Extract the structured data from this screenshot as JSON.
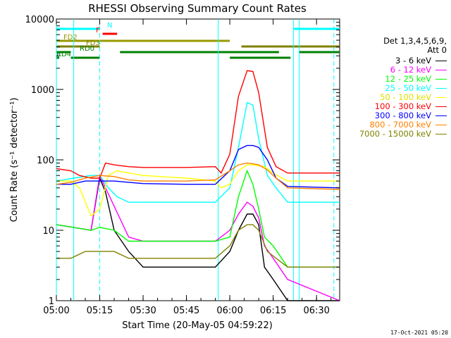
{
  "chart_data": {
    "type": "line",
    "title": "RHESSI Observing Summary Count Rates",
    "xlabel": "Start Time (20-May-05 04:59:22)",
    "ylabel": "Count Rate (s⁻¹ detector⁻¹)",
    "y_scale": "log",
    "xlim": [
      "05:00",
      "06:38"
    ],
    "ylim": [
      1,
      10000
    ],
    "x_ticks": [
      "05:00",
      "05:15",
      "05:30",
      "05:45",
      "06:00",
      "06:15",
      "06:30"
    ],
    "y_ticks": [
      "1",
      "10",
      "100",
      "1000",
      "10000"
    ],
    "legend_header": [
      "Det 1,3,4,5,6,9,",
      "Att 0"
    ],
    "legend_position": "right",
    "timestamp": "17-Oct-2021 05:20",
    "series": [
      {
        "name": "3 - 6 keV",
        "color": "#000000",
        "points": [
          [
            "05:00",
            12
          ],
          [
            "05:12",
            10
          ],
          [
            "05:15",
            55
          ],
          [
            "05:17",
            35
          ],
          [
            "05:20",
            10
          ],
          [
            "05:25",
            5
          ],
          [
            "05:30",
            3
          ],
          [
            "05:45",
            3
          ],
          [
            "05:55",
            3
          ],
          [
            "06:00",
            5
          ],
          [
            "06:03",
            10
          ],
          [
            "06:06",
            17
          ],
          [
            "06:08",
            17
          ],
          [
            "06:10",
            12
          ],
          [
            "06:12",
            3
          ],
          [
            "06:15",
            2
          ],
          [
            "06:20",
            1
          ],
          [
            "06:38",
            1
          ]
        ]
      },
      {
        "name": "6 - 12 keV",
        "color": "#ff00ff",
        "points": [
          [
            "05:00",
            12
          ],
          [
            "05:12",
            10
          ],
          [
            "05:15",
            60
          ],
          [
            "05:17",
            40
          ],
          [
            "05:20",
            22
          ],
          [
            "05:25",
            8
          ],
          [
            "05:30",
            7
          ],
          [
            "05:45",
            7
          ],
          [
            "05:55",
            7
          ],
          [
            "06:00",
            10
          ],
          [
            "06:03",
            17
          ],
          [
            "06:06",
            25
          ],
          [
            "06:08",
            22
          ],
          [
            "06:10",
            15
          ],
          [
            "06:12",
            6
          ],
          [
            "06:15",
            4
          ],
          [
            "06:20",
            2
          ],
          [
            "06:38",
            1
          ]
        ]
      },
      {
        "name": "12 - 25 keV",
        "color": "#00ff00",
        "points": [
          [
            "05:00",
            12
          ],
          [
            "05:12",
            10
          ],
          [
            "05:15",
            11
          ],
          [
            "05:20",
            10
          ],
          [
            "05:25",
            7
          ],
          [
            "05:30",
            7
          ],
          [
            "05:45",
            7
          ],
          [
            "05:55",
            7
          ],
          [
            "06:00",
            8
          ],
          [
            "06:03",
            30
          ],
          [
            "06:06",
            70
          ],
          [
            "06:08",
            45
          ],
          [
            "06:10",
            20
          ],
          [
            "06:12",
            8
          ],
          [
            "06:15",
            6
          ],
          [
            "06:20",
            3
          ],
          [
            "06:38",
            3
          ]
        ]
      },
      {
        "name": "25 - 50 keV",
        "color": "#00ffff",
        "points": [
          [
            "05:00",
            50
          ],
          [
            "05:06",
            55
          ],
          [
            "05:12",
            60
          ],
          [
            "05:15",
            60
          ],
          [
            "05:18",
            40
          ],
          [
            "05:21",
            30
          ],
          [
            "05:25",
            25
          ],
          [
            "05:30",
            25
          ],
          [
            "05:45",
            25
          ],
          [
            "05:55",
            25
          ],
          [
            "06:00",
            40
          ],
          [
            "06:03",
            150
          ],
          [
            "06:06",
            650
          ],
          [
            "06:08",
            600
          ],
          [
            "06:10",
            200
          ],
          [
            "06:13",
            60
          ],
          [
            "06:16",
            40
          ],
          [
            "06:20",
            25
          ],
          [
            "06:38",
            25
          ]
        ]
      },
      {
        "name": "50 - 100 keV",
        "color": "#ffff00",
        "points": [
          [
            "05:00",
            50
          ],
          [
            "05:05",
            50
          ],
          [
            "05:08",
            40
          ],
          [
            "05:12",
            16
          ],
          [
            "05:15",
            20
          ],
          [
            "05:18",
            60
          ],
          [
            "05:21",
            70
          ],
          [
            "05:25",
            65
          ],
          [
            "05:30",
            60
          ],
          [
            "05:45",
            55
          ],
          [
            "05:55",
            50
          ],
          [
            "05:57",
            40
          ],
          [
            "06:00",
            45
          ],
          [
            "06:03",
            70
          ],
          [
            "06:06",
            85
          ],
          [
            "06:08",
            85
          ],
          [
            "06:12",
            80
          ],
          [
            "06:15",
            65
          ],
          [
            "06:18",
            55
          ],
          [
            "06:20",
            50
          ],
          [
            "06:38",
            50
          ]
        ]
      },
      {
        "name": "100 - 300 keV",
        "color": "#ff0000",
        "points": [
          [
            "05:00",
            75
          ],
          [
            "05:05",
            70
          ],
          [
            "05:08",
            60
          ],
          [
            "05:12",
            55
          ],
          [
            "05:15",
            55
          ],
          [
            "05:17",
            90
          ],
          [
            "05:20",
            85
          ],
          [
            "05:25",
            80
          ],
          [
            "05:30",
            78
          ],
          [
            "05:45",
            78
          ],
          [
            "05:55",
            80
          ],
          [
            "05:57",
            65
          ],
          [
            "06:00",
            120
          ],
          [
            "06:03",
            800
          ],
          [
            "06:06",
            1850
          ],
          [
            "06:08",
            1800
          ],
          [
            "06:10",
            900
          ],
          [
            "06:13",
            150
          ],
          [
            "06:16",
            80
          ],
          [
            "06:20",
            65
          ],
          [
            "06:38",
            65
          ]
        ]
      },
      {
        "name": "300 - 800 keV",
        "color": "#0000ff",
        "points": [
          [
            "05:00",
            45
          ],
          [
            "05:05",
            45
          ],
          [
            "05:10",
            50
          ],
          [
            "05:15",
            50
          ],
          [
            "05:20",
            50
          ],
          [
            "05:25",
            48
          ],
          [
            "05:30",
            46
          ],
          [
            "05:45",
            45
          ],
          [
            "05:55",
            45
          ],
          [
            "06:00",
            70
          ],
          [
            "06:03",
            140
          ],
          [
            "06:06",
            160
          ],
          [
            "06:08",
            160
          ],
          [
            "06:10",
            150
          ],
          [
            "06:13",
            100
          ],
          [
            "06:16",
            55
          ],
          [
            "06:20",
            42
          ],
          [
            "06:38",
            40
          ]
        ]
      },
      {
        "name": "800 - 7000 keV",
        "color": "#ff8000",
        "points": [
          [
            "05:00",
            45
          ],
          [
            "05:05",
            48
          ],
          [
            "05:10",
            55
          ],
          [
            "05:15",
            60
          ],
          [
            "05:20",
            58
          ],
          [
            "05:25",
            52
          ],
          [
            "05:30",
            50
          ],
          [
            "05:45",
            50
          ],
          [
            "05:55",
            52
          ],
          [
            "06:00",
            70
          ],
          [
            "06:03",
            85
          ],
          [
            "06:06",
            90
          ],
          [
            "06:08",
            88
          ],
          [
            "06:10",
            85
          ],
          [
            "06:13",
            72
          ],
          [
            "06:16",
            55
          ],
          [
            "06:20",
            40
          ],
          [
            "06:38",
            38
          ]
        ]
      },
      {
        "name": "7000 - 15000 keV",
        "color": "#808000",
        "points": [
          [
            "05:00",
            4
          ],
          [
            "05:05",
            4
          ],
          [
            "05:10",
            5
          ],
          [
            "05:15",
            5
          ],
          [
            "05:20",
            5
          ],
          [
            "05:25",
            4
          ],
          [
            "05:30",
            4
          ],
          [
            "05:45",
            4
          ],
          [
            "05:55",
            4
          ],
          [
            "06:00",
            6
          ],
          [
            "06:03",
            10
          ],
          [
            "06:06",
            12
          ],
          [
            "06:08",
            12
          ],
          [
            "06:10",
            10
          ],
          [
            "06:13",
            5
          ],
          [
            "06:16",
            4
          ],
          [
            "06:20",
            3
          ],
          [
            "06:38",
            3
          ]
        ]
      }
    ],
    "flags": [
      {
        "label": "N",
        "color": "#00ffff",
        "segments": [
          [
            "05:00",
            "05:15"
          ],
          [
            "06:22",
            "06:38"
          ]
        ]
      },
      {
        "label": "F",
        "color": "#ff0000",
        "segments": [
          [
            "05:16",
            "05:21"
          ]
        ]
      },
      {
        "label": "FD2",
        "color": "#999900",
        "segments": [
          [
            "05:00",
            "06:00"
          ]
        ]
      },
      {
        "label": "FD3",
        "color": "#808000",
        "segments": [
          [
            "05:00",
            "05:15"
          ],
          [
            "06:04",
            "06:38"
          ]
        ]
      },
      {
        "label": "RD0",
        "color": "#008000",
        "segments": [
          [
            "05:00",
            "05:05"
          ],
          [
            "05:22",
            "06:17"
          ],
          [
            "06:24",
            "06:38"
          ]
        ]
      },
      {
        "label": "RD4",
        "color": "#008000",
        "segments": [
          [
            "05:00",
            "05:00"
          ],
          [
            "05:05",
            "05:15"
          ],
          [
            "06:00",
            "06:21"
          ]
        ]
      }
    ],
    "vertical_lines": [
      {
        "time": "05:00",
        "style": "solid"
      },
      {
        "time": "05:06",
        "style": "solid"
      },
      {
        "time": "05:15",
        "style": "dashed"
      },
      {
        "time": "05:56",
        "style": "solid"
      },
      {
        "time": "06:22",
        "style": "solid"
      },
      {
        "time": "06:24",
        "style": "solid"
      },
      {
        "time": "06:36",
        "style": "dashed"
      }
    ]
  }
}
